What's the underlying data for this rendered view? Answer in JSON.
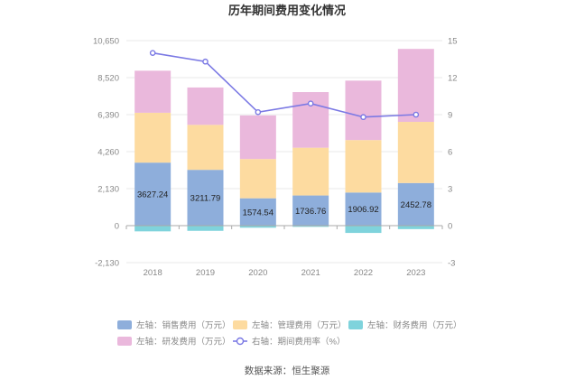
{
  "chart_data": {
    "type": "bar",
    "title": "历年期间费用变化情况",
    "categories": [
      "2018",
      "2019",
      "2020",
      "2021",
      "2022",
      "2023"
    ],
    "left_axis": {
      "ticks": [
        "10,650",
        "8,520",
        "6,390",
        "4,260",
        "2,130",
        "0",
        "-2,130"
      ],
      "min": -2130,
      "max": 10650
    },
    "right_axis": {
      "ticks": [
        "15",
        "12",
        "9",
        "6",
        "3",
        "0",
        "-3"
      ],
      "min": -3,
      "max": 15
    },
    "series": [
      {
        "name": "左轴：销售费用（万元）",
        "color": "#8eaedb",
        "values": [
          3627.24,
          3211.79,
          1574.54,
          1736.76,
          1906.92,
          2452.78
        ],
        "labels": [
          "3627.24",
          "3211.79",
          "1574.54",
          "1736.76",
          "1906.92",
          "2452.78"
        ]
      },
      {
        "name": "左轴：管理费用（万元）",
        "color": "#fddba0",
        "values": [
          2870,
          2590,
          2260,
          2750,
          3020,
          3520
        ]
      },
      {
        "name": "左轴：财务费用（万元）",
        "color": "#7fd3dc",
        "values": [
          -330,
          -300,
          -120,
          -70,
          -420,
          -200
        ]
      },
      {
        "name": "左轴：研发费用（万元）",
        "color": "#eab8dc",
        "values": [
          2420,
          2150,
          2510,
          3200,
          3420,
          4200
        ]
      },
      {
        "name": "右轴：期间费用率（%）",
        "color": "#7b79e4",
        "type": "line",
        "axis": "right",
        "values": [
          14.0,
          13.3,
          9.2,
          9.9,
          8.8,
          9.0
        ]
      }
    ],
    "legend_position": "bottom",
    "grid": true
  },
  "source": "数据来源：恒生聚源"
}
